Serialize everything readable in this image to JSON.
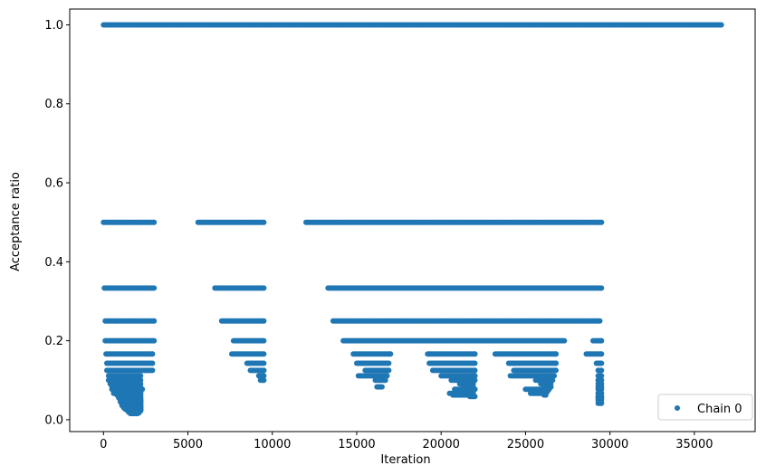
{
  "chart_data": {
    "type": "scatter",
    "xlabel": "Iteration",
    "ylabel": "Acceptance ratio",
    "xlim": [
      -2000,
      38600
    ],
    "ylim": [
      -0.03,
      1.04
    ],
    "x_ticks": [
      0,
      5000,
      10000,
      15000,
      20000,
      25000,
      30000,
      35000
    ],
    "x_tick_labels": [
      "0",
      "5000",
      "10000",
      "15000",
      "20000",
      "25000",
      "30000",
      "35000"
    ],
    "y_ticks": [
      0.0,
      0.2,
      0.4,
      0.6,
      0.8,
      1.0
    ],
    "y_tick_labels": [
      "0.0",
      "0.2",
      "0.4",
      "0.6",
      "0.8",
      "1.0"
    ],
    "grid": false,
    "legend_position": "lower-right",
    "series": [
      {
        "name": "Chain 0",
        "color": "#1f77b4",
        "marker": "circle",
        "levels": [
          {
            "y": 1.0,
            "ranges": [
              [
                0,
                36600
              ]
            ]
          },
          {
            "y": 0.5,
            "ranges": [
              [
                0,
                3000
              ],
              [
                5600,
                9500
              ],
              [
                12000,
                29500
              ]
            ]
          },
          {
            "y": 0.3333,
            "ranges": [
              [
                50,
                3000
              ],
              [
                6600,
                9500
              ],
              [
                13300,
                29500
              ]
            ]
          },
          {
            "y": 0.25,
            "ranges": [
              [
                100,
                3000
              ],
              [
                7000,
                9500
              ],
              [
                13600,
                29400
              ]
            ]
          },
          {
            "y": 0.2,
            "ranges": [
              [
                100,
                3000
              ],
              [
                7700,
                9500
              ],
              [
                14200,
                27300
              ],
              [
                29000,
                29500
              ]
            ]
          },
          {
            "y": 0.1667,
            "ranges": [
              [
                150,
                2900
              ],
              [
                7600,
                9500
              ],
              [
                14800,
                17000
              ],
              [
                19200,
                22000
              ],
              [
                23200,
                26800
              ],
              [
                28600,
                29500
              ]
            ]
          },
          {
            "y": 0.1429,
            "ranges": [
              [
                200,
                2900
              ],
              [
                8500,
                9500
              ],
              [
                15000,
                16900
              ],
              [
                19300,
                22000
              ],
              [
                24000,
                26800
              ],
              [
                29200,
                29500
              ]
            ]
          },
          {
            "y": 0.125,
            "ranges": [
              [
                200,
                2900
              ],
              [
                8700,
                9500
              ],
              [
                15500,
                16900
              ],
              [
                19500,
                22000
              ],
              [
                24300,
                26800
              ],
              [
                29300,
                29500
              ]
            ]
          },
          {
            "y": 0.1111,
            "ranges": [
              [
                300,
                2200
              ],
              [
                9200,
                9500
              ],
              [
                15100,
                16800
              ],
              [
                20000,
                22000
              ],
              [
                24100,
                26700
              ],
              [
                29300,
                29500
              ]
            ]
          },
          {
            "y": 0.1,
            "ranges": [
              [
                300,
                2200
              ],
              [
                9300,
                9500
              ],
              [
                16100,
                16700
              ],
              [
                20600,
                22000
              ],
              [
                25600,
                26600
              ],
              [
                29300,
                29500
              ]
            ]
          },
          {
            "y": 0.0909,
            "ranges": [
              [
                400,
                2200
              ],
              [
                21100,
                21900
              ],
              [
                25900,
                26500
              ],
              [
                29300,
                29500
              ]
            ]
          },
          {
            "y": 0.0833,
            "ranges": [
              [
                500,
                2200
              ],
              [
                16200,
                16500
              ],
              [
                21300,
                21900
              ],
              [
                26100,
                26500
              ],
              [
                29300,
                29500
              ]
            ]
          },
          {
            "y": 0.0769,
            "ranges": [
              [
                500,
                2300
              ],
              [
                20800,
                22000
              ],
              [
                25000,
                26400
              ],
              [
                29300,
                29500
              ]
            ]
          },
          {
            "y": 0.0714,
            "ranges": [
              [
                600,
                2200
              ],
              [
                21500,
                21900
              ],
              [
                26200,
                26300
              ]
            ]
          },
          {
            "y": 0.0667,
            "ranges": [
              [
                600,
                2200
              ],
              [
                20500,
                21900
              ],
              [
                25300,
                26200
              ],
              [
                29300,
                29500
              ]
            ]
          },
          {
            "y": 0.0625,
            "ranges": [
              [
                800,
                2200
              ],
              [
                20700,
                21800
              ],
              [
                26100,
                26200
              ]
            ]
          },
          {
            "y": 0.0588,
            "ranges": [
              [
                900,
                2200
              ],
              [
                21700,
                22000
              ],
              [
                29300,
                29500
              ]
            ]
          },
          {
            "y": 0.0556,
            "ranges": [
              [
                900,
                2200
              ],
              [
                29300,
                29500
              ]
            ]
          },
          {
            "y": 0.0526,
            "ranges": [
              [
                1000,
                2200
              ]
            ]
          },
          {
            "y": 0.05,
            "ranges": [
              [
                1000,
                2200
              ],
              [
                29300,
                29500
              ]
            ]
          },
          {
            "y": 0.0476,
            "ranges": [
              [
                1000,
                2200
              ]
            ]
          },
          {
            "y": 0.0455,
            "ranges": [
              [
                1000,
                2200
              ]
            ]
          },
          {
            "y": 0.0435,
            "ranges": [
              [
                1100,
                2200
              ]
            ]
          },
          {
            "y": 0.0417,
            "ranges": [
              [
                1100,
                2200
              ],
              [
                29300,
                29500
              ]
            ]
          },
          {
            "y": 0.04,
            "ranges": [
              [
                1100,
                2200
              ]
            ]
          },
          {
            "y": 0.0385,
            "ranges": [
              [
                1100,
                2200
              ]
            ]
          },
          {
            "y": 0.037,
            "ranges": [
              [
                1100,
                2200
              ]
            ]
          },
          {
            "y": 0.0357,
            "ranges": [
              [
                1100,
                2200
              ]
            ]
          },
          {
            "y": 0.0345,
            "ranges": [
              [
                1200,
                2200
              ]
            ]
          },
          {
            "y": 0.0333,
            "ranges": [
              [
                1200,
                2200
              ]
            ]
          },
          {
            "y": 0.0323,
            "ranges": [
              [
                1200,
                2200
              ]
            ]
          },
          {
            "y": 0.0313,
            "ranges": [
              [
                1200,
                2200
              ]
            ]
          },
          {
            "y": 0.0303,
            "ranges": [
              [
                1200,
                2200
              ]
            ]
          },
          {
            "y": 0.0294,
            "ranges": [
              [
                1300,
                2200
              ]
            ]
          },
          {
            "y": 0.0286,
            "ranges": [
              [
                1300,
                2200
              ]
            ]
          },
          {
            "y": 0.0278,
            "ranges": [
              [
                1300,
                2200
              ]
            ]
          },
          {
            "y": 0.027,
            "ranges": [
              [
                1300,
                2200
              ]
            ]
          },
          {
            "y": 0.0263,
            "ranges": [
              [
                1300,
                2200
              ]
            ]
          },
          {
            "y": 0.025,
            "ranges": [
              [
                1400,
                2200
              ]
            ]
          },
          {
            "y": 0.0238,
            "ranges": [
              [
                1400,
                2200
              ]
            ]
          },
          {
            "y": 0.0222,
            "ranges": [
              [
                1500,
                2200
              ]
            ]
          },
          {
            "y": 0.02,
            "ranges": [
              [
                1500,
                2100
              ]
            ]
          },
          {
            "y": 0.0189,
            "ranges": [
              [
                1500,
                2100
              ]
            ]
          },
          {
            "y": 0.0172,
            "ranges": [
              [
                1600,
                2100
              ]
            ]
          },
          {
            "y": 0.0156,
            "ranges": [
              [
                1600,
                2000
              ]
            ]
          }
        ]
      }
    ]
  }
}
